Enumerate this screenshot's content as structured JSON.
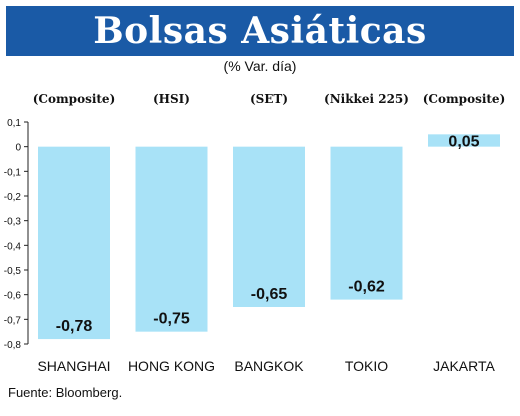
{
  "header": {
    "title": "Bolsas Asiáticas",
    "subtitle": "(% Var. día)"
  },
  "footer": {
    "source": "Fuente: Bloomberg."
  },
  "colors": {
    "title_bg": "#1a5aa6",
    "bar": "#a8e2f7",
    "axis": "#222222"
  },
  "chart_data": {
    "type": "bar",
    "title": "Bolsas Asiáticas",
    "subtitle": "(% Var. día)",
    "categories": [
      "SHANGHAI",
      "HONG KONG",
      "BANGKOK",
      "TOKIO",
      "JAKARTA"
    ],
    "index_labels": [
      "(Composite)",
      "(HSI)",
      "(SET)",
      "(Nikkei 225)",
      "(Composite)"
    ],
    "values": [
      -0.78,
      -0.75,
      -0.65,
      -0.62,
      0.05
    ],
    "value_labels": [
      "-0,78",
      "-0,75",
      "-0,65",
      "-0,62",
      "0,05"
    ],
    "ylim": [
      -0.8,
      0.1
    ],
    "yticks": [
      0.1,
      0,
      -0.1,
      -0.2,
      -0.3,
      -0.4,
      -0.5,
      -0.6,
      -0.7,
      -0.8
    ],
    "ytick_labels": [
      "0,1",
      "0",
      "-0,1",
      "-0,2",
      "-0,3",
      "-0,4",
      "-0,5",
      "-0,6",
      "-0,7",
      "-0,8"
    ],
    "grid": false,
    "legend": "none"
  }
}
